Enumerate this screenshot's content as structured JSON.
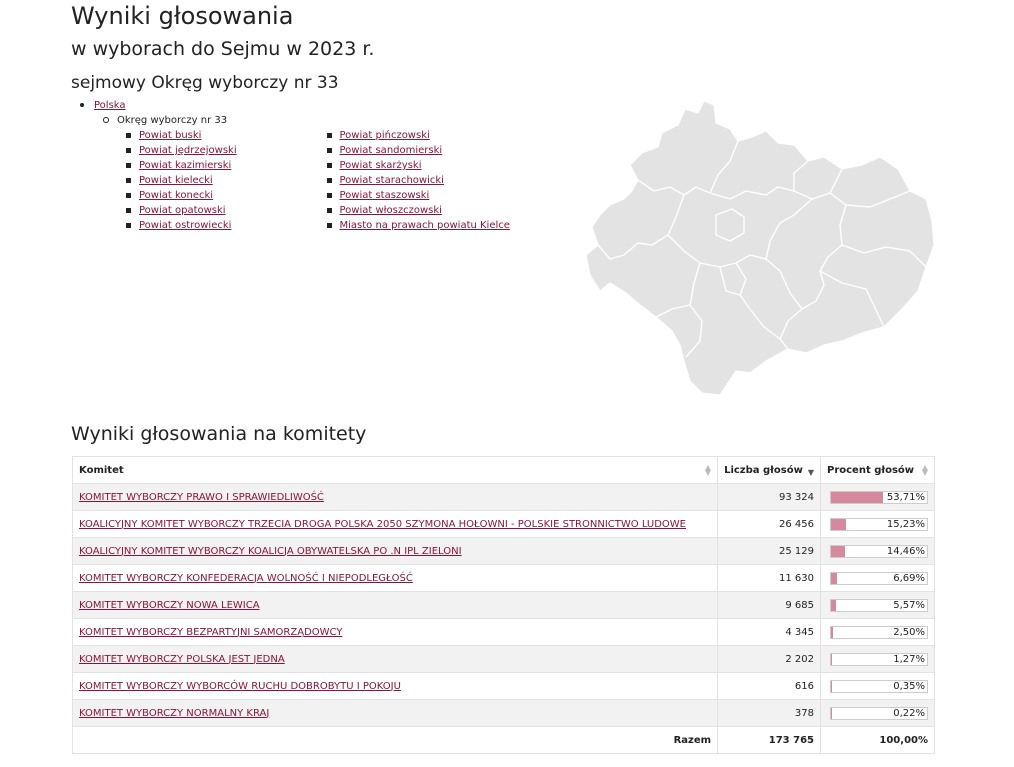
{
  "header": {
    "title": "Wyniki głosowania",
    "subtitle": "w wyborach do Sejmu w 2023 r.",
    "district": "sejmowy Okręg wyborczy nr 33"
  },
  "nav": {
    "root": "Polska",
    "district": "Okręg wyborczy nr 33",
    "powiaty_left": [
      "Powiat buski",
      "Powiat jędrzejowski",
      "Powiat kazimierski",
      "Powiat kielecki",
      "Powiat konecki",
      "Powiat opatowski",
      "Powiat ostrowiecki"
    ],
    "powiaty_right": [
      "Powiat pińczowski",
      "Powiat sandomierski",
      "Powiat skarżyski",
      "Powiat starachowicki",
      "Powiat staszowski",
      "Powiat włoszczowski",
      "Miasto na prawach powiatu Kielce"
    ]
  },
  "map": {
    "fill": "#e3e3e3",
    "stroke": "#ffffff"
  },
  "results": {
    "title": "Wyniki głosowania na komitety",
    "headers": {
      "committee": "Komitet",
      "votes": "Liczba głosów",
      "percent": "Procent głosów"
    },
    "rows": [
      {
        "committee": "KOMITET WYBORCZY PRAWO I SPRAWIEDLIWOŚĆ",
        "votes": "93 324",
        "percent": "53,71%",
        "share": 0.5371
      },
      {
        "committee": "KOALICYJNY KOMITET WYBORCZY TRZECIA DROGA POLSKA 2050 SZYMONA HOŁOWNI - POLSKIE STRONNICTWO LUDOWE",
        "votes": "26 456",
        "percent": "15,23%",
        "share": 0.1523
      },
      {
        "committee": "KOALICYJNY KOMITET WYBORCZY KOALICJA OBYWATELSKA PO .N IPL ZIELONI",
        "votes": "25 129",
        "percent": "14,46%",
        "share": 0.1446
      },
      {
        "committee": "KOMITET WYBORCZY KONFEDERACJA WOLNOŚĆ I NIEPODLEGŁOŚĆ",
        "votes": "11 630",
        "percent": "6,69%",
        "share": 0.0669
      },
      {
        "committee": "KOMITET WYBORCZY NOWA LEWICA",
        "votes": "9 685",
        "percent": "5,57%",
        "share": 0.0557
      },
      {
        "committee": "KOMITET WYBORCZY BEZPARTYJNI SAMORZĄDOWCY",
        "votes": "4 345",
        "percent": "2,50%",
        "share": 0.025
      },
      {
        "committee": "KOMITET WYBORCZY POLSKA JEST JEDNA",
        "votes": "2 202",
        "percent": "1,27%",
        "share": 0.0127
      },
      {
        "committee": "KOMITET WYBORCZY WYBORCÓW RUCHU DOBROBYTU I POKOJU",
        "votes": "616",
        "percent": "0,35%",
        "share": 0.0035
      },
      {
        "committee": "KOMITET WYBORCZY NORMALNY KRAJ",
        "votes": "378",
        "percent": "0,22%",
        "share": 0.0022
      }
    ],
    "total": {
      "label": "Razem",
      "votes": "173 765",
      "percent": "100,00%"
    },
    "bar_color": "#d4899d"
  }
}
